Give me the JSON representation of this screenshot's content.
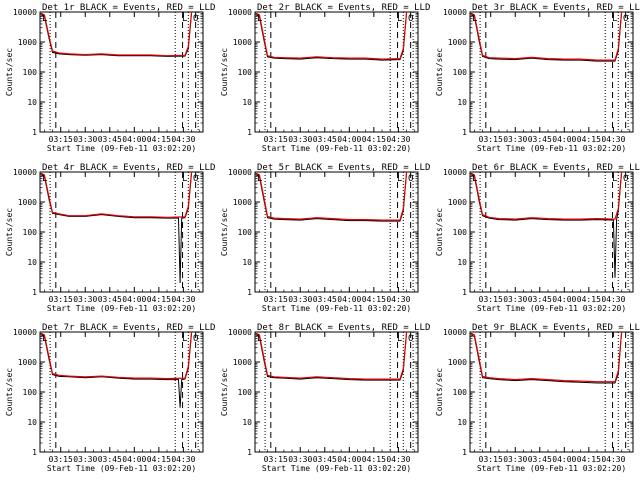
{
  "chart_data": {
    "type": "line",
    "y_scale": "log",
    "ylim": [
      1,
      10000
    ],
    "ylabel": "Counts/sec",
    "xlabel": "Start Time (09-Feb-11 03:02:20)",
    "x_tick_labels": [
      "03:15",
      "03:30",
      "03:45",
      "04:00",
      "04:15",
      "04:30"
    ],
    "x_tick_minutes": [
      15,
      30,
      45,
      60,
      75,
      90
    ],
    "x_range_minutes": [
      2.33,
      102
    ],
    "y_tick_labels": [
      "1",
      "10",
      "100",
      "1000",
      "10000"
    ],
    "y_tick_values": [
      1,
      10,
      100,
      1000,
      10000
    ],
    "series_colors": {
      "events": "#000000",
      "lld": "#e00000"
    },
    "panels": [
      {
        "title": "Det 1r BLACK = Events, RED = LLD",
        "markers": "L O",
        "events": [
          [
            3,
            8000
          ],
          [
            5,
            7000
          ],
          [
            8,
            1200
          ],
          [
            10,
            450
          ],
          [
            14,
            400
          ],
          [
            20,
            380
          ],
          [
            30,
            360
          ],
          [
            40,
            380
          ],
          [
            50,
            350
          ],
          [
            60,
            350
          ],
          [
            70,
            350
          ],
          [
            80,
            330
          ],
          [
            91,
            340
          ],
          [
            93,
            600
          ],
          [
            95,
            10000
          ]
        ],
        "lld": [
          [
            3,
            9000
          ],
          [
            5,
            8000
          ],
          [
            8,
            1400
          ],
          [
            10,
            500
          ],
          [
            14,
            430
          ],
          [
            20,
            400
          ],
          [
            30,
            380
          ],
          [
            40,
            400
          ],
          [
            50,
            370
          ],
          [
            60,
            370
          ],
          [
            70,
            370
          ],
          [
            80,
            350
          ],
          [
            91,
            360
          ],
          [
            93,
            700
          ],
          [
            95,
            10000
          ]
        ]
      },
      {
        "title": "Det 2r BLACK = Events, RED = LLD",
        "markers": "L O",
        "events": [
          [
            3,
            8000
          ],
          [
            5,
            7000
          ],
          [
            8,
            1000
          ],
          [
            10,
            320
          ],
          [
            14,
            290
          ],
          [
            20,
            280
          ],
          [
            30,
            270
          ],
          [
            40,
            300
          ],
          [
            50,
            280
          ],
          [
            60,
            270
          ],
          [
            70,
            270
          ],
          [
            80,
            250
          ],
          [
            91,
            260
          ],
          [
            93,
            500
          ],
          [
            95,
            10000
          ]
        ],
        "lld": [
          [
            3,
            9000
          ],
          [
            5,
            8000
          ],
          [
            8,
            1200
          ],
          [
            10,
            350
          ],
          [
            14,
            310
          ],
          [
            20,
            300
          ],
          [
            30,
            290
          ],
          [
            40,
            320
          ],
          [
            50,
            300
          ],
          [
            60,
            290
          ],
          [
            70,
            290
          ],
          [
            80,
            270
          ],
          [
            91,
            280
          ],
          [
            93,
            600
          ],
          [
            95,
            10000
          ]
        ]
      },
      {
        "title": "Det 3r BLACK = Events, RED = LLD",
        "markers": "L O",
        "events": [
          [
            3,
            8000
          ],
          [
            5,
            7000
          ],
          [
            8,
            1000
          ],
          [
            10,
            330
          ],
          [
            14,
            280
          ],
          [
            20,
            270
          ],
          [
            30,
            260
          ],
          [
            40,
            290
          ],
          [
            50,
            260
          ],
          [
            60,
            250
          ],
          [
            70,
            250
          ],
          [
            80,
            230
          ],
          [
            91,
            230
          ],
          [
            93,
            500
          ],
          [
            95,
            10000
          ]
        ],
        "lld": [
          [
            3,
            9000
          ],
          [
            5,
            8000
          ],
          [
            8,
            1200
          ],
          [
            10,
            360
          ],
          [
            14,
            300
          ],
          [
            20,
            290
          ],
          [
            30,
            280
          ],
          [
            40,
            310
          ],
          [
            50,
            280
          ],
          [
            60,
            270
          ],
          [
            70,
            270
          ],
          [
            80,
            250
          ],
          [
            91,
            250
          ],
          [
            93,
            600
          ],
          [
            95,
            10000
          ]
        ]
      },
      {
        "title": "Det 4r BLACK = Events, RED = LLD",
        "markers": "L O",
        "events": [
          [
            3,
            8000
          ],
          [
            5,
            7000
          ],
          [
            8,
            1100
          ],
          [
            10,
            420
          ],
          [
            14,
            380
          ],
          [
            20,
            330
          ],
          [
            30,
            330
          ],
          [
            40,
            380
          ],
          [
            50,
            330
          ],
          [
            60,
            300
          ],
          [
            70,
            300
          ],
          [
            80,
            290
          ],
          [
            87,
            290
          ],
          [
            88,
            2
          ],
          [
            89,
            290
          ],
          [
            91,
            300
          ],
          [
            93,
            600
          ],
          [
            95,
            10000
          ]
        ],
        "lld": [
          [
            3,
            9000
          ],
          [
            5,
            8000
          ],
          [
            8,
            1300
          ],
          [
            10,
            450
          ],
          [
            14,
            400
          ],
          [
            20,
            350
          ],
          [
            30,
            350
          ],
          [
            40,
            400
          ],
          [
            50,
            350
          ],
          [
            60,
            320
          ],
          [
            70,
            320
          ],
          [
            80,
            310
          ],
          [
            91,
            320
          ],
          [
            93,
            700
          ],
          [
            95,
            10000
          ]
        ]
      },
      {
        "title": "Det 5r BLACK = Events, RED = LLD",
        "markers": "L O",
        "events": [
          [
            3,
            8000
          ],
          [
            5,
            7000
          ],
          [
            8,
            1000
          ],
          [
            10,
            300
          ],
          [
            14,
            270
          ],
          [
            20,
            260
          ],
          [
            30,
            250
          ],
          [
            40,
            280
          ],
          [
            50,
            260
          ],
          [
            60,
            240
          ],
          [
            70,
            240
          ],
          [
            80,
            230
          ],
          [
            91,
            230
          ],
          [
            93,
            500
          ],
          [
            95,
            10000
          ]
        ],
        "lld": [
          [
            3,
            9000
          ],
          [
            5,
            8000
          ],
          [
            8,
            1200
          ],
          [
            10,
            330
          ],
          [
            14,
            290
          ],
          [
            20,
            280
          ],
          [
            30,
            270
          ],
          [
            40,
            300
          ],
          [
            50,
            280
          ],
          [
            60,
            260
          ],
          [
            70,
            260
          ],
          [
            80,
            250
          ],
          [
            91,
            250
          ],
          [
            93,
            600
          ],
          [
            95,
            10000
          ]
        ]
      },
      {
        "title": "Det 6r BLACK = Events, RED = LLD",
        "markers": "L O",
        "events": [
          [
            3,
            8000
          ],
          [
            5,
            7000
          ],
          [
            8,
            1000
          ],
          [
            10,
            350
          ],
          [
            14,
            290
          ],
          [
            20,
            260
          ],
          [
            30,
            250
          ],
          [
            40,
            280
          ],
          [
            50,
            260
          ],
          [
            60,
            250
          ],
          [
            70,
            250
          ],
          [
            80,
            260
          ],
          [
            90,
            250
          ],
          [
            91,
            3
          ],
          [
            92,
            260
          ],
          [
            93,
            500
          ],
          [
            95,
            10000
          ]
        ],
        "lld": [
          [
            3,
            9000
          ],
          [
            5,
            8000
          ],
          [
            8,
            1200
          ],
          [
            10,
            380
          ],
          [
            14,
            310
          ],
          [
            20,
            280
          ],
          [
            30,
            270
          ],
          [
            40,
            300
          ],
          [
            50,
            280
          ],
          [
            60,
            270
          ],
          [
            70,
            270
          ],
          [
            80,
            280
          ],
          [
            91,
            270
          ],
          [
            93,
            600
          ],
          [
            95,
            10000
          ]
        ]
      },
      {
        "title": "Det 7r BLACK = Events, RED = LLD",
        "markers": "L O",
        "events": [
          [
            3,
            8000
          ],
          [
            5,
            7000
          ],
          [
            8,
            1100
          ],
          [
            10,
            380
          ],
          [
            14,
            330
          ],
          [
            20,
            320
          ],
          [
            30,
            300
          ],
          [
            40,
            320
          ],
          [
            50,
            290
          ],
          [
            60,
            270
          ],
          [
            70,
            270
          ],
          [
            80,
            260
          ],
          [
            87,
            260
          ],
          [
            88,
            30
          ],
          [
            89,
            260
          ],
          [
            91,
            270
          ],
          [
            93,
            600
          ],
          [
            95,
            10000
          ]
        ],
        "lld": [
          [
            3,
            9000
          ],
          [
            5,
            8000
          ],
          [
            8,
            1300
          ],
          [
            10,
            410
          ],
          [
            14,
            360
          ],
          [
            20,
            340
          ],
          [
            30,
            320
          ],
          [
            40,
            340
          ],
          [
            50,
            310
          ],
          [
            60,
            290
          ],
          [
            70,
            290
          ],
          [
            80,
            280
          ],
          [
            91,
            290
          ],
          [
            93,
            700
          ],
          [
            95,
            10000
          ]
        ]
      },
      {
        "title": "Det 8r BLACK = Events, RED = LLD",
        "markers": "L O",
        "events": [
          [
            3,
            8000
          ],
          [
            5,
            7000
          ],
          [
            8,
            1000
          ],
          [
            10,
            330
          ],
          [
            14,
            300
          ],
          [
            20,
            290
          ],
          [
            30,
            270
          ],
          [
            40,
            300
          ],
          [
            50,
            280
          ],
          [
            60,
            260
          ],
          [
            70,
            250
          ],
          [
            80,
            250
          ],
          [
            91,
            250
          ],
          [
            93,
            500
          ],
          [
            95,
            10000
          ]
        ],
        "lld": [
          [
            3,
            9000
          ],
          [
            5,
            8000
          ],
          [
            8,
            1200
          ],
          [
            10,
            360
          ],
          [
            14,
            320
          ],
          [
            20,
            310
          ],
          [
            30,
            290
          ],
          [
            40,
            320
          ],
          [
            50,
            300
          ],
          [
            60,
            280
          ],
          [
            70,
            270
          ],
          [
            80,
            270
          ],
          [
            91,
            270
          ],
          [
            93,
            600
          ],
          [
            95,
            10000
          ]
        ]
      },
      {
        "title": "Det 9r BLACK = Events, RED = LLD",
        "markers": "",
        "events": [
          [
            3,
            8000
          ],
          [
            5,
            7000
          ],
          [
            8,
            1000
          ],
          [
            10,
            300
          ],
          [
            14,
            280
          ],
          [
            20,
            260
          ],
          [
            30,
            240
          ],
          [
            40,
            260
          ],
          [
            50,
            240
          ],
          [
            60,
            220
          ],
          [
            70,
            210
          ],
          [
            80,
            200
          ],
          [
            91,
            200
          ],
          [
            93,
            400
          ],
          [
            95,
            10000
          ]
        ],
        "lld": [
          [
            3,
            9000
          ],
          [
            5,
            8000
          ],
          [
            8,
            1200
          ],
          [
            10,
            330
          ],
          [
            14,
            300
          ],
          [
            20,
            280
          ],
          [
            30,
            260
          ],
          [
            40,
            280
          ],
          [
            50,
            260
          ],
          [
            60,
            240
          ],
          [
            70,
            230
          ],
          [
            80,
            220
          ],
          [
            91,
            220
          ],
          [
            93,
            500
          ],
          [
            95,
            10000
          ]
        ]
      }
    ]
  }
}
